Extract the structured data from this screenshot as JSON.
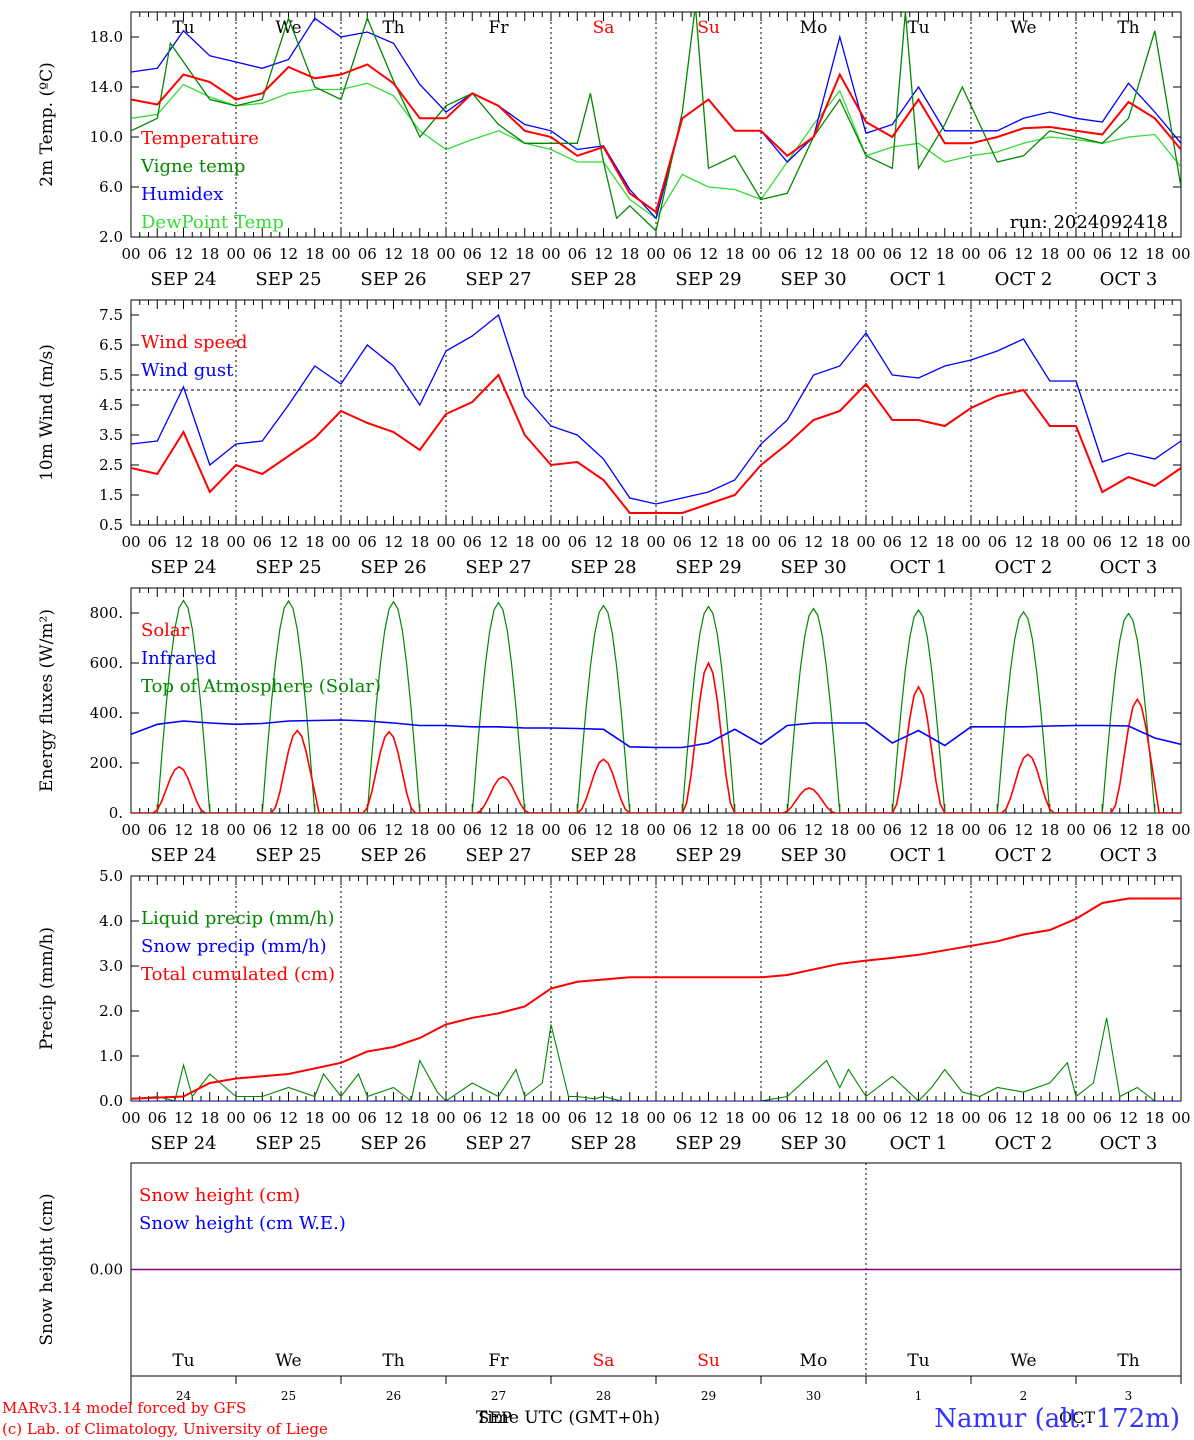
{
  "colors": {
    "red": "#ff0000",
    "darkgreen": "#008800",
    "blue": "#0000ff",
    "lightgreen": "#33dd33",
    "purple": "#880088",
    "weekday_default": "#000000",
    "weekend": "#ff0000"
  },
  "weekdays": [
    {
      "label": "Tu",
      "weekend": false
    },
    {
      "label": "We",
      "weekend": false
    },
    {
      "label": "Th",
      "weekend": false
    },
    {
      "label": "Fr",
      "weekend": false
    },
    {
      "label": "Sa",
      "weekend": true
    },
    {
      "label": "Su",
      "weekend": true
    },
    {
      "label": "Mo",
      "weekend": false
    },
    {
      "label": "Tu",
      "weekend": false
    },
    {
      "label": "We",
      "weekend": false
    },
    {
      "label": "Th",
      "weekend": false
    }
  ],
  "date_labels": [
    "SEP 24",
    "SEP 25",
    "SEP 26",
    "SEP 27",
    "SEP 28",
    "SEP 29",
    "SEP 30",
    "OCT  1",
    "OCT  2",
    "OCT  3"
  ],
  "hour_ticks": [
    "00",
    "06",
    "12",
    "18"
  ],
  "bottom_day_numbers": [
    "24",
    "25",
    "26",
    "27",
    "28",
    "29",
    "30",
    "1",
    "2",
    "3"
  ],
  "bottom_month_left": "SEP",
  "bottom_month_right": "OCT",
  "footer": {
    "time_label": "Time UTC (GMT+0h)",
    "model_line": "MARv3.14 model forced by GFS",
    "credit_line": "(c) Lab. of Climatology, University of Liege",
    "station": "Namur (alt. 172m)"
  },
  "chart_data": [
    {
      "type": "line",
      "ylabel": "2m Temp. (ºC)",
      "ylim": [
        2.0,
        20.0
      ],
      "yticks": [
        "2.0",
        "6.0",
        "10.0",
        "14.0",
        "18.0"
      ],
      "run_label": "run: 2024092418",
      "x_unit": "hours since 2024-09-24 00 UTC",
      "series": [
        {
          "name": "Temperature",
          "color": "red",
          "x": [
            0,
            6,
            12,
            18,
            24,
            30,
            36,
            42,
            48,
            54,
            60,
            66,
            72,
            78,
            84,
            90,
            96,
            102,
            108,
            114,
            120,
            126,
            132,
            138,
            144,
            150,
            156,
            162,
            168,
            174,
            180,
            186,
            192,
            198,
            204,
            210,
            216,
            222,
            228,
            234,
            240
          ],
          "values": [
            13,
            12.6,
            15,
            14.4,
            13,
            13.5,
            15.6,
            14.7,
            15,
            15.8,
            14.3,
            11.5,
            11.5,
            13.5,
            12.5,
            10.5,
            10,
            8.5,
            9.2,
            5.5,
            4,
            11.5,
            13,
            10.5,
            10.5,
            8.5,
            10,
            15,
            11.2,
            10,
            13,
            9.5,
            9.5,
            10,
            10.7,
            10.8,
            10.5,
            10.2,
            12.8,
            11.5,
            9
          ]
        },
        {
          "name": "Vigne temp",
          "color": "darkgreen",
          "x": [
            0,
            6,
            9,
            12,
            18,
            24,
            30,
            36,
            42,
            48,
            54,
            60,
            66,
            72,
            78,
            84,
            90,
            96,
            102,
            105,
            108,
            111,
            114,
            120,
            126,
            129,
            132,
            138,
            144,
            150,
            156,
            162,
            168,
            174,
            177,
            180,
            186,
            190,
            198,
            204,
            210,
            216,
            222,
            228,
            234,
            240
          ],
          "values": [
            10.5,
            11.5,
            17.5,
            16,
            13,
            12.5,
            13,
            19.5,
            14,
            13,
            19.5,
            14.5,
            10,
            12.5,
            13.5,
            11,
            9.5,
            9.5,
            9.5,
            13.5,
            8,
            3.5,
            4.5,
            2.5,
            12,
            20.5,
            7.5,
            8.5,
            5,
            5.5,
            10,
            13,
            8.5,
            7.5,
            20,
            7.5,
            11,
            14,
            8,
            8.5,
            10.5,
            10,
            9.5,
            11.5,
            18.5,
            6
          ]
        },
        {
          "name": "Humidex",
          "color": "blue",
          "x": [
            0,
            6,
            12,
            18,
            24,
            30,
            36,
            42,
            48,
            54,
            60,
            66,
            72,
            78,
            84,
            90,
            96,
            102,
            108,
            114,
            120,
            126,
            132,
            138,
            144,
            150,
            156,
            162,
            168,
            174,
            180,
            186,
            192,
            198,
            204,
            210,
            216,
            222,
            228,
            234,
            240
          ],
          "values": [
            15.2,
            15.5,
            18.5,
            16.5,
            16,
            15.5,
            16.2,
            19.5,
            18,
            18.4,
            17.5,
            14.2,
            12,
            13.5,
            12.5,
            11,
            10.5,
            9,
            9.3,
            5.8,
            3.5,
            11.5,
            13,
            10.5,
            10.5,
            8,
            10,
            18,
            10.3,
            11,
            14,
            10.5,
            10.5,
            10.5,
            11.5,
            12,
            11.5,
            11.2,
            14.3,
            12,
            9.5
          ]
        },
        {
          "name": "DewPoint Temp",
          "color": "lightgreen",
          "x": [
            0,
            6,
            12,
            18,
            24,
            30,
            36,
            42,
            48,
            54,
            60,
            66,
            72,
            78,
            84,
            90,
            96,
            102,
            108,
            114,
            120,
            126,
            132,
            138,
            144,
            150,
            156,
            162,
            168,
            174,
            180,
            186,
            192,
            198,
            204,
            210,
            216,
            222,
            228,
            234,
            240
          ],
          "values": [
            11.5,
            11.8,
            14.2,
            13.2,
            12.5,
            12.7,
            13.5,
            13.8,
            13.8,
            14.3,
            13.3,
            10.5,
            9,
            9.8,
            10.5,
            9.5,
            9,
            8,
            8,
            5,
            3.5,
            7,
            6,
            5.8,
            5,
            8,
            11,
            13.7,
            8.5,
            9.2,
            9.5,
            8,
            8.5,
            8.8,
            9.5,
            10,
            9.8,
            9.5,
            10,
            10.2,
            7.6
          ]
        }
      ]
    },
    {
      "type": "line",
      "ylabel": "10m Wind (m/s)",
      "ylim": [
        0.5,
        8.0
      ],
      "yticks": [
        "0.5",
        "1.5",
        "2.5",
        "3.5",
        "4.5",
        "5.5",
        "6.5",
        "7.5"
      ],
      "reference_line": 5.0,
      "x_unit": "hours since 2024-09-24 00 UTC",
      "series": [
        {
          "name": "Wind speed",
          "color": "red",
          "x": [
            0,
            6,
            12,
            18,
            24,
            30,
            36,
            42,
            48,
            54,
            60,
            66,
            72,
            78,
            84,
            90,
            96,
            102,
            108,
            114,
            120,
            126,
            132,
            138,
            144,
            150,
            156,
            162,
            168,
            174,
            180,
            186,
            192,
            198,
            204,
            210,
            216,
            222,
            228,
            234,
            240
          ],
          "values": [
            2.4,
            2.2,
            3.6,
            1.6,
            2.5,
            2.2,
            2.8,
            3.4,
            4.3,
            3.9,
            3.6,
            3,
            4.2,
            4.6,
            5.5,
            3.5,
            2.5,
            2.6,
            2,
            0.9,
            0.9,
            0.9,
            1.2,
            1.5,
            2.5,
            3.2,
            4,
            4.3,
            5.2,
            4,
            4,
            3.8,
            4.4,
            4.8,
            5,
            3.8,
            3.8,
            1.6,
            2.1,
            1.8,
            2.4
          ]
        },
        {
          "name": "Wind gust",
          "color": "blue",
          "x": [
            0,
            6,
            12,
            18,
            24,
            30,
            36,
            42,
            48,
            54,
            60,
            66,
            72,
            78,
            84,
            90,
            96,
            102,
            108,
            114,
            120,
            126,
            132,
            138,
            144,
            150,
            156,
            162,
            168,
            174,
            180,
            186,
            192,
            198,
            204,
            210,
            216,
            222,
            228,
            234,
            240
          ],
          "values": [
            3.2,
            3.3,
            5.1,
            2.5,
            3.2,
            3.3,
            4.5,
            5.8,
            5.2,
            6.5,
            5.8,
            4.5,
            6.3,
            6.8,
            7.5,
            4.8,
            3.8,
            3.5,
            2.7,
            1.4,
            1.2,
            1.4,
            1.6,
            2,
            3.2,
            4,
            5.5,
            5.8,
            6.9,
            5.5,
            5.4,
            5.8,
            6,
            6.3,
            6.7,
            5.3,
            5.3,
            2.6,
            2.9,
            2.7,
            3.3
          ]
        }
      ]
    },
    {
      "type": "line",
      "ylabel": "Energy fluxes (W/m²)",
      "ylim": [
        0,
        900
      ],
      "yticks": [
        "0.",
        "200.",
        "400.",
        "600.",
        "800."
      ],
      "x_unit": "hours since 2024-09-24 00 UTC",
      "series": [
        {
          "name": "Solar",
          "color": "red",
          "daily_peak_hour": [
            11,
            14,
            11,
            13,
            12,
            12,
            11,
            12,
            13,
            14
          ],
          "daily_peak_value": [
            185,
            330,
            325,
            145,
            215,
            600,
            100,
            505,
            235,
            455
          ]
        },
        {
          "name": "Infrared",
          "color": "blue",
          "x": [
            0,
            6,
            12,
            18,
            24,
            30,
            36,
            42,
            48,
            54,
            60,
            66,
            72,
            78,
            84,
            90,
            96,
            102,
            108,
            114,
            120,
            126,
            132,
            138,
            144,
            150,
            156,
            162,
            168,
            174,
            180,
            186,
            192,
            198,
            204,
            210,
            216,
            222,
            228,
            234,
            240
          ],
          "values": [
            315,
            355,
            368,
            360,
            355,
            358,
            368,
            370,
            372,
            368,
            360,
            350,
            350,
            345,
            345,
            340,
            340,
            338,
            335,
            265,
            262,
            262,
            280,
            335,
            275,
            350,
            360,
            360,
            360,
            280,
            330,
            270,
            345,
            345,
            345,
            348,
            350,
            350,
            348,
            300,
            275
          ]
        },
        {
          "name": "Top of Atmosphere (Solar)",
          "color": "darkgreen",
          "daily_peak_hour": 12,
          "daily_peak_value": [
            850,
            848,
            845,
            842,
            830,
            826,
            818,
            812,
            805,
            798
          ],
          "day_length_hours": 12
        }
      ]
    },
    {
      "type": "line",
      "ylabel": "Precip (mm/h)",
      "ylim": [
        0,
        5.0
      ],
      "yticks": [
        "0.0",
        "1.0",
        "2.0",
        "3.0",
        "4.0",
        "5.0"
      ],
      "x_unit": "hours since 2024-09-24 00 UTC",
      "series": [
        {
          "name": "Liquid precip (mm/h)",
          "color": "darkgreen",
          "x": [
            0,
            6,
            10,
            12,
            14,
            18,
            24,
            30,
            36,
            42,
            44,
            48,
            52,
            54,
            60,
            64,
            66,
            70,
            72,
            78,
            84,
            88,
            90,
            94,
            96,
            100,
            102,
            106,
            108,
            112,
            120,
            144,
            150,
            159,
            162,
            164,
            168,
            174,
            180,
            183,
            186,
            190,
            194,
            198,
            204,
            210,
            214,
            216,
            220,
            223,
            226,
            230,
            234,
            240
          ],
          "values": [
            0.05,
            0.1,
            0,
            0.8,
            0.1,
            0.6,
            0.1,
            0.1,
            0.3,
            0.1,
            0.6,
            0.1,
            0.6,
            0.1,
            0.3,
            0,
            0.9,
            0.2,
            0,
            0.4,
            0.1,
            0.7,
            0.1,
            0.4,
            1.7,
            0.1,
            0.1,
            0.05,
            0.1,
            0,
            0,
            0,
            0.1,
            0.9,
            0.3,
            0.7,
            0.1,
            0.55,
            0,
            0.3,
            0.7,
            0.2,
            0.1,
            0.3,
            0.2,
            0.4,
            0.85,
            0.1,
            0.4,
            1.85,
            0.1,
            0.3,
            0,
            0
          ]
        },
        {
          "name": "Snow precip (mm/h)",
          "color": "blue",
          "x": [
            0,
            240
          ],
          "values": [
            0,
            0
          ]
        },
        {
          "name": "Total cumulated (cm)",
          "color": "red",
          "x": [
            0,
            12,
            18,
            24,
            36,
            48,
            54,
            60,
            66,
            72,
            78,
            84,
            90,
            96,
            102,
            108,
            114,
            120,
            144,
            150,
            162,
            168,
            174,
            180,
            186,
            192,
            198,
            204,
            210,
            216,
            222,
            228,
            234,
            240
          ],
          "values": [
            0.05,
            0.1,
            0.4,
            0.5,
            0.6,
            0.85,
            1.1,
            1.2,
            1.4,
            1.7,
            1.85,
            1.95,
            2.1,
            2.5,
            2.65,
            2.7,
            2.75,
            2.75,
            2.75,
            2.8,
            3.05,
            3.12,
            3.18,
            3.25,
            3.35,
            3.45,
            3.55,
            3.7,
            3.8,
            4.05,
            4.4,
            4.5,
            4.5,
            4.5
          ]
        }
      ]
    },
    {
      "type": "line",
      "ylabel": "Snow height (cm)",
      "yticks": [
        "0.00"
      ],
      "x_unit": "hours since 2024-09-24 00 UTC",
      "series": [
        {
          "name": "Snow height (cm)",
          "color": "red",
          "x": [
            0,
            240
          ],
          "values": [
            0,
            0
          ]
        },
        {
          "name": "Snow height (cm W.E.)",
          "color": "blue",
          "x": [
            0,
            240
          ],
          "values": [
            0,
            0
          ]
        }
      ]
    }
  ]
}
